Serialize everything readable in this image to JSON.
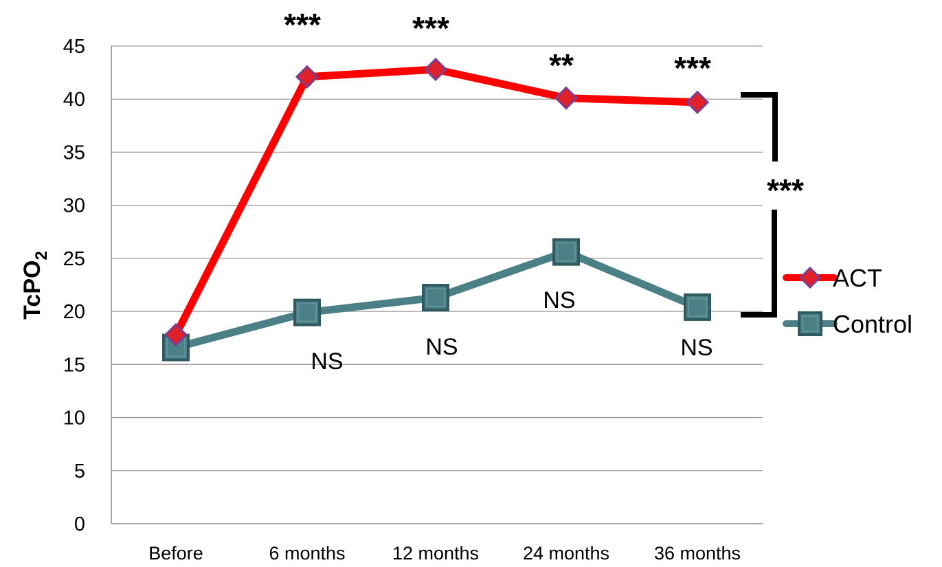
{
  "chart_data": {
    "type": "line",
    "title": "",
    "xlabel": "",
    "ylabel": "TcPO",
    "ylabel_subscript": "2",
    "categories": [
      "Before",
      "6 months",
      "12 months",
      "24 months",
      "36 months"
    ],
    "ylim": [
      0,
      45
    ],
    "yticks": [
      0,
      5,
      10,
      15,
      20,
      25,
      30,
      35,
      40,
      45
    ],
    "grid": true,
    "legend_position": "right",
    "series": [
      {
        "name": "ACT",
        "values": [
          17.8,
          42.1,
          42.8,
          40.1,
          39.7
        ],
        "color": "#ff0000",
        "marker": "diamond",
        "marker_color": "#e0202a",
        "marker_edge": "#7a3e8c"
      },
      {
        "name": "Control",
        "values": [
          16.6,
          19.9,
          21.3,
          25.6,
          20.4
        ],
        "color": "#4a8086",
        "marker": "square",
        "marker_color": "#4a8086",
        "marker_edge": "#2f5a60"
      }
    ],
    "annotations": {
      "act_significance": [
        "",
        "***",
        "***",
        "**",
        "***"
      ],
      "control_significance": [
        "",
        "NS",
        "NS",
        "NS",
        "NS"
      ],
      "between_groups": "***"
    }
  }
}
